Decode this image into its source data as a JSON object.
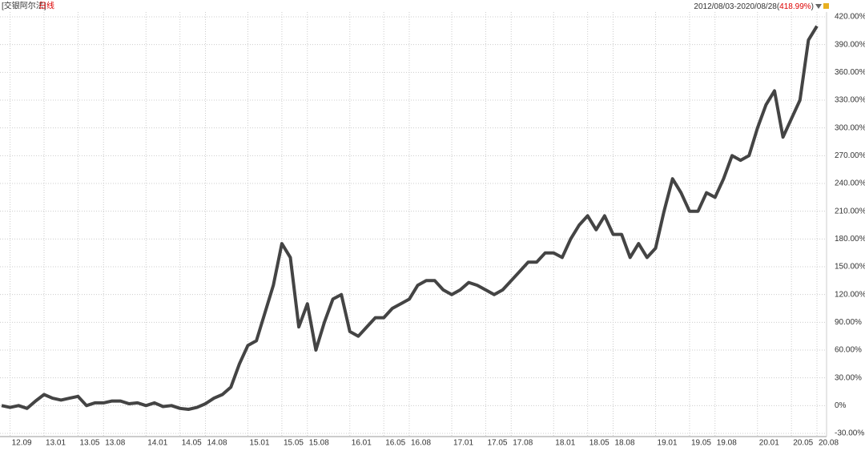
{
  "chart_data": {
    "type": "line",
    "header": {
      "fund": "[交银阿尔法]",
      "period_type": "日线",
      "range_parts": [
        "2012/08/03-2020/08/28(",
        "418.99%",
        ")"
      ]
    },
    "x": [
      "12.08",
      "12.09",
      "12.10",
      "12.11",
      "12.12",
      "13.01",
      "13.02",
      "13.03",
      "13.04",
      "13.05",
      "13.06",
      "13.07",
      "13.08",
      "13.09",
      "13.10",
      "13.11",
      "13.12",
      "14.01",
      "14.02",
      "14.03",
      "14.04",
      "14.05",
      "14.06",
      "14.07",
      "14.08",
      "14.09",
      "14.10",
      "14.11",
      "14.12",
      "15.01",
      "15.02",
      "15.03",
      "15.04",
      "15.05",
      "15.06",
      "15.07",
      "15.08",
      "15.09",
      "15.10",
      "15.11",
      "15.12",
      "16.01",
      "16.02",
      "16.03",
      "16.04",
      "16.05",
      "16.06",
      "16.07",
      "16.08",
      "16.09",
      "16.10",
      "16.11",
      "16.12",
      "17.01",
      "17.02",
      "17.03",
      "17.04",
      "17.05",
      "17.06",
      "17.07",
      "17.08",
      "17.09",
      "17.10",
      "17.11",
      "17.12",
      "18.01",
      "18.02",
      "18.03",
      "18.04",
      "18.05",
      "18.06",
      "18.07",
      "18.08",
      "18.09",
      "18.10",
      "18.11",
      "18.12",
      "19.01",
      "19.02",
      "19.03",
      "19.04",
      "19.05",
      "19.06",
      "19.07",
      "19.08",
      "19.09",
      "19.10",
      "19.11",
      "19.12",
      "20.01",
      "20.02",
      "20.03",
      "20.04",
      "20.05",
      "20.06",
      "20.07",
      "20.08"
    ],
    "series": [
      {
        "name": "交银阿尔法",
        "color": "#444444",
        "values": [
          0,
          -2,
          0,
          -3,
          5,
          12,
          8,
          6,
          8,
          10,
          0,
          3,
          3,
          5,
          5,
          2,
          3,
          0,
          3,
          -1,
          0,
          -3,
          -4,
          -2,
          2,
          8,
          12,
          20,
          45,
          65,
          70,
          100,
          130,
          175,
          160,
          85,
          110,
          60,
          90,
          115,
          120,
          80,
          75,
          85,
          95,
          95,
          105,
          110,
          115,
          130,
          135,
          135,
          125,
          120,
          125,
          133,
          130,
          125,
          120,
          125,
          135,
          145,
          155,
          155,
          165,
          165,
          160,
          180,
          195,
          205,
          190,
          205,
          185,
          185,
          160,
          175,
          160,
          170,
          210,
          245,
          230,
          210,
          210,
          230,
          225,
          245,
          270,
          265,
          270,
          300,
          325,
          340,
          290,
          310,
          330,
          395,
          410
        ]
      }
    ],
    "xticks": [
      "12.09",
      "13.01",
      "13.05",
      "13.08",
      "14.01",
      "14.05",
      "14.08",
      "15.01",
      "15.05",
      "15.08",
      "16.01",
      "16.05",
      "16.08",
      "17.01",
      "17.05",
      "17.08",
      "18.01",
      "18.05",
      "18.08",
      "19.01",
      "19.05",
      "19.08",
      "20.01",
      "20.05",
      "20.08"
    ],
    "ylim": [
      -30,
      420
    ],
    "yticks": [
      {
        "value": -30,
        "label": "-30.00%"
      },
      {
        "value": 0,
        "label": "0%"
      },
      {
        "value": 30,
        "label": "30.00%"
      },
      {
        "value": 60,
        "label": "60.00%"
      },
      {
        "value": 90,
        "label": "90.00%"
      },
      {
        "value": 120,
        "label": "120.00%"
      },
      {
        "value": 150,
        "label": "150.00%"
      },
      {
        "value": 180,
        "label": "180.00%"
      },
      {
        "value": 210,
        "label": "210.00%"
      },
      {
        "value": 240,
        "label": "240.00%"
      },
      {
        "value": 270,
        "label": "270.00%"
      },
      {
        "value": 300,
        "label": "300.00%"
      },
      {
        "value": 330,
        "label": "330.00%"
      },
      {
        "value": 360,
        "label": "360.00%"
      },
      {
        "value": 390,
        "label": "390.00%"
      },
      {
        "value": 420,
        "label": "420.00%"
      }
    ],
    "grid": true
  }
}
